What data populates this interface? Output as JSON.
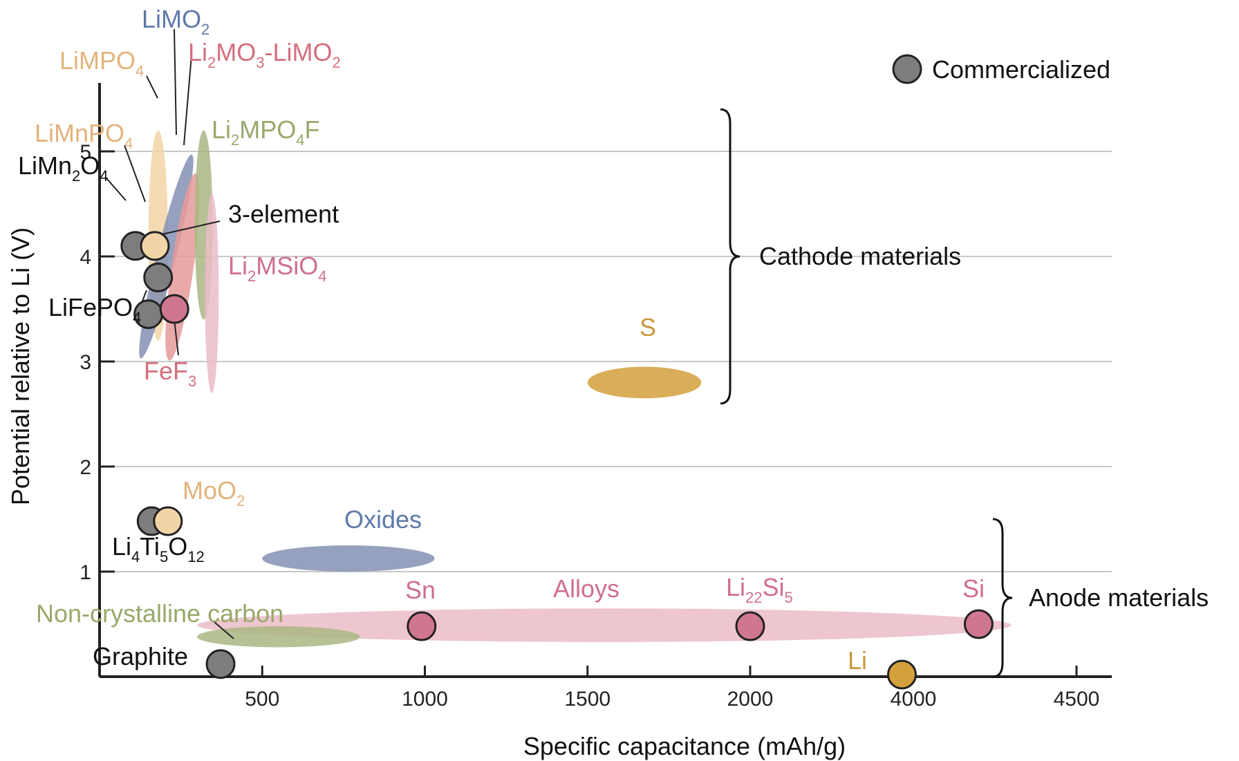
{
  "chart_data": {
    "type": "scatter",
    "title": "",
    "xlabel": "Specific capacitance (mAh/g)",
    "ylabel": "Potential relative to Li (V)",
    "xlim": [
      0,
      4500
    ],
    "ylim": [
      0,
      5.5
    ],
    "xticks": [
      500,
      1000,
      1500,
      2000,
      4000,
      4500
    ],
    "yticks": [
      1,
      2,
      3,
      4,
      5
    ],
    "grid": "horizontal",
    "legend": {
      "position": "top-right",
      "label": "Commercialized",
      "color": "#7d7d7d"
    },
    "colors": {
      "commercialized": "#7d7d7d",
      "pink": "#cf7690",
      "tan": "#f2d5a6",
      "gold": "#d4a03c",
      "blue": "#8391b3",
      "green": "#a9b683",
      "pink_light": "#ebbcc8",
      "salmon": "#e69a9a"
    },
    "groups": [
      {
        "label": "Cathode materials",
        "ymin": 2.6,
        "ymax": 5.4
      },
      {
        "label": "Anode materials",
        "ymin": 0.0,
        "ymax": 1.5
      }
    ],
    "points": [
      {
        "label": "LiMn2O4",
        "x": 110,
        "y": 4.1,
        "color": "#7d7d7d"
      },
      {
        "label": "LiMnPO4",
        "x": 170,
        "y": 4.1,
        "color": "#f2d5a6"
      },
      {
        "label": "3-element",
        "x": 180,
        "y": 3.8,
        "color": "#7d7d7d"
      },
      {
        "label": "LiFePO4",
        "x": 150,
        "y": 3.45,
        "color": "#7d7d7d"
      },
      {
        "label": "FeF3",
        "x": 230,
        "y": 3.5,
        "color": "#cf7690"
      },
      {
        "label": "Li4Ti5O12",
        "x": 160,
        "y": 1.48,
        "color": "#7d7d7d"
      },
      {
        "label": "MoO2",
        "x": 210,
        "y": 1.48,
        "color": "#f2d5a6"
      },
      {
        "label": "Sn",
        "x": 990,
        "y": 0.48,
        "color": "#cf7690"
      },
      {
        "label": "Li22Si5",
        "x": 2000,
        "y": 0.48,
        "color": "#cf7690"
      },
      {
        "label": "Si",
        "x": 4200,
        "y": 0.5,
        "color": "#cf7690"
      },
      {
        "label": "Graphite",
        "x": 372,
        "y": 0.12,
        "color": "#7d7d7d"
      },
      {
        "label": "Li",
        "x": 3860,
        "y": 0.02,
        "color": "#d4a03c"
      }
    ],
    "regions": [
      {
        "label": "LiMPO4",
        "x": [
          130,
          230
        ],
        "y": [
          3.2,
          5.2
        ],
        "color": "#f2d5a6"
      },
      {
        "label": "LiMO2",
        "x": [
          110,
          300
        ],
        "y": [
          3.0,
          5.0
        ],
        "color": "#8391b3"
      },
      {
        "label": "Li2MO3-LiMO2",
        "x": [
          210,
          300
        ],
        "y": [
          3.0,
          4.8
        ],
        "color": "#e69a9a"
      },
      {
        "label": "Li2MPO4F",
        "x": [
          280,
          360
        ],
        "y": [
          3.4,
          5.2
        ],
        "color": "#a9b683"
      },
      {
        "label": "Li2MSiO4",
        "x": [
          320,
          370
        ],
        "y": [
          2.7,
          4.6
        ],
        "color": "#ebbcc8"
      },
      {
        "label": "S",
        "x": [
          1500,
          1850
        ],
        "y": [
          2.65,
          2.95
        ],
        "color": "#d4a03c"
      },
      {
        "label": "Oxides",
        "x": [
          500,
          1030
        ],
        "y": [
          1.0,
          1.25
        ],
        "color": "#8391b3"
      },
      {
        "label": "Alloys",
        "x": [
          300,
          4300
        ],
        "y": [
          0.33,
          0.65
        ],
        "color": "#ebbcc8"
      },
      {
        "label": "Non-crystalline carbon",
        "x": [
          300,
          800
        ],
        "y": [
          0.28,
          0.48
        ],
        "color": "#a9b683"
      }
    ]
  }
}
